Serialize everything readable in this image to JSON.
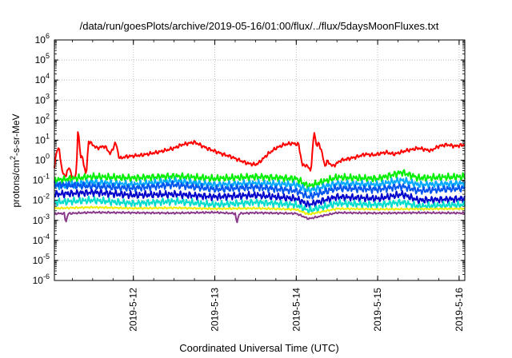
{
  "chart_data": {
    "type": "line",
    "title": "/data/run/goesPlots/archive/2019-05-16/01:00/flux/../flux/5daysMoonFluxes.txt",
    "xlabel": "Coordinated Universal Time (UTC)",
    "ylabel_parts": [
      "protons/cm",
      "2",
      "-s-sr-MeV"
    ],
    "y_scale": "log",
    "ylim": [
      1e-06,
      1000000.0
    ],
    "y_ticks": [
      {
        "mant": "10",
        "exp": "-6"
      },
      {
        "mant": "10",
        "exp": "-5"
      },
      {
        "mant": "10",
        "exp": "-4"
      },
      {
        "mant": "10",
        "exp": "-3"
      },
      {
        "mant": "10",
        "exp": "-2"
      },
      {
        "mant": "10",
        "exp": "-1"
      },
      {
        "mant": "10",
        "exp": "0"
      },
      {
        "mant": "10",
        "exp": "1"
      },
      {
        "mant": "10",
        "exp": "2"
      },
      {
        "mant": "10",
        "exp": "3"
      },
      {
        "mant": "10",
        "exp": "4"
      },
      {
        "mant": "10",
        "exp": "5"
      },
      {
        "mant": "10",
        "exp": "6"
      }
    ],
    "x_ticks": [
      "2019-5-12",
      "2019-5-13",
      "2019-5-14",
      "2019-5-15",
      "2019-5-16"
    ],
    "xlim_days": [
      11.03,
      16.07
    ],
    "grid": true,
    "series": [
      {
        "color": "#ff0000",
        "points": [
          [
            11.03,
            0.5
          ],
          [
            11.06,
            3
          ],
          [
            11.09,
            4
          ],
          [
            11.12,
            0.3
          ],
          [
            11.17,
            0.15
          ],
          [
            11.21,
            0.5
          ],
          [
            11.25,
            0.12
          ],
          [
            11.3,
            0.2
          ],
          [
            11.32,
            50
          ],
          [
            11.35,
            1.5
          ],
          [
            11.38,
            1.2
          ],
          [
            11.42,
            0.15
          ],
          [
            11.45,
            9
          ],
          [
            11.5,
            6
          ],
          [
            11.55,
            4
          ],
          [
            11.65,
            5
          ],
          [
            11.72,
            2
          ],
          [
            11.78,
            8
          ],
          [
            11.83,
            1.2
          ],
          [
            11.9,
            1.5
          ],
          [
            12.1,
            1.8
          ],
          [
            12.3,
            2.5
          ],
          [
            12.5,
            4
          ],
          [
            12.6,
            6
          ],
          [
            12.75,
            8
          ],
          [
            12.9,
            4
          ],
          [
            13.1,
            2
          ],
          [
            13.2,
            1.5
          ],
          [
            13.3,
            1
          ],
          [
            13.4,
            0.7
          ],
          [
            13.5,
            0.6
          ],
          [
            13.55,
            0.8
          ],
          [
            13.65,
            2
          ],
          [
            13.75,
            4
          ],
          [
            13.85,
            6
          ],
          [
            13.95,
            7
          ],
          [
            14.03,
            6
          ],
          [
            14.05,
            2
          ],
          [
            14.08,
            0.5
          ],
          [
            14.12,
            0.6
          ],
          [
            14.18,
            0.3
          ],
          [
            14.2,
            3
          ],
          [
            14.22,
            30
          ],
          [
            14.25,
            5
          ],
          [
            14.28,
            7
          ],
          [
            14.31,
            3
          ],
          [
            14.35,
            0.5
          ],
          [
            14.38,
            0.9
          ],
          [
            14.45,
            0.5
          ],
          [
            14.55,
            1
          ],
          [
            14.65,
            1.2
          ],
          [
            14.75,
            1.5
          ],
          [
            14.85,
            2
          ],
          [
            14.95,
            1.8
          ],
          [
            15.1,
            2.5
          ],
          [
            15.2,
            2
          ],
          [
            15.35,
            3
          ],
          [
            15.5,
            4
          ],
          [
            15.65,
            3
          ],
          [
            15.75,
            5
          ],
          [
            15.85,
            6
          ],
          [
            15.95,
            5
          ],
          [
            16.07,
            6
          ]
        ]
      },
      {
        "color": "#00ee00",
        "points": [
          [
            11.03,
            0.1
          ],
          [
            11.5,
            0.15
          ],
          [
            12.0,
            0.13
          ],
          [
            12.5,
            0.16
          ],
          [
            13.0,
            0.12
          ],
          [
            13.5,
            0.15
          ],
          [
            14.0,
            0.12
          ],
          [
            14.15,
            0.05
          ],
          [
            14.5,
            0.14
          ],
          [
            15.0,
            0.12
          ],
          [
            15.3,
            0.25
          ],
          [
            15.5,
            0.13
          ],
          [
            16.07,
            0.15
          ]
        ]
      },
      {
        "color": "#00aaff",
        "points": [
          [
            11.03,
            0.05
          ],
          [
            11.5,
            0.08
          ],
          [
            12.0,
            0.06
          ],
          [
            12.5,
            0.09
          ],
          [
            13.0,
            0.06
          ],
          [
            13.5,
            0.07
          ],
          [
            14.0,
            0.06
          ],
          [
            14.15,
            0.03
          ],
          [
            14.5,
            0.07
          ],
          [
            15.0,
            0.06
          ],
          [
            15.3,
            0.1
          ],
          [
            15.5,
            0.06
          ],
          [
            16.07,
            0.07
          ]
        ]
      },
      {
        "color": "#0055ee",
        "points": [
          [
            11.03,
            0.06
          ],
          [
            11.5,
            0.05
          ],
          [
            12.0,
            0.04
          ],
          [
            12.5,
            0.06
          ],
          [
            13.0,
            0.035
          ],
          [
            13.5,
            0.045
          ],
          [
            14.0,
            0.03
          ],
          [
            14.15,
            0.015
          ],
          [
            14.5,
            0.04
          ],
          [
            15.0,
            0.035
          ],
          [
            15.3,
            0.05
          ],
          [
            15.5,
            0.03
          ],
          [
            16.07,
            0.04
          ]
        ]
      },
      {
        "color": "#0000cc",
        "points": [
          [
            11.03,
            0.02
          ],
          [
            11.5,
            0.025
          ],
          [
            12.0,
            0.018
          ],
          [
            12.5,
            0.02
          ],
          [
            13.0,
            0.015
          ],
          [
            13.5,
            0.018
          ],
          [
            14.0,
            0.012
          ],
          [
            14.15,
            0.006
          ],
          [
            14.5,
            0.015
          ],
          [
            15.0,
            0.012
          ],
          [
            15.3,
            0.02
          ],
          [
            15.5,
            0.01
          ],
          [
            16.07,
            0.012
          ]
        ]
      },
      {
        "color": "#00ddcc",
        "points": [
          [
            11.03,
            0.008
          ],
          [
            11.5,
            0.01
          ],
          [
            12.0,
            0.007
          ],
          [
            12.5,
            0.009
          ],
          [
            13.0,
            0.006
          ],
          [
            13.5,
            0.008
          ],
          [
            14.0,
            0.006
          ],
          [
            14.15,
            0.003
          ],
          [
            14.5,
            0.007
          ],
          [
            15.0,
            0.006
          ],
          [
            15.3,
            0.008
          ],
          [
            15.5,
            0.005
          ],
          [
            16.07,
            0.006
          ]
        ]
      },
      {
        "color": "#eeee00",
        "points": [
          [
            11.03,
            0.004
          ],
          [
            11.5,
            0.0045
          ],
          [
            12.0,
            0.004
          ],
          [
            12.5,
            0.0042
          ],
          [
            13.0,
            0.0038
          ],
          [
            13.5,
            0.004
          ],
          [
            14.0,
            0.0035
          ],
          [
            14.15,
            0.002
          ],
          [
            14.5,
            0.0038
          ],
          [
            15.0,
            0.0036
          ],
          [
            15.5,
            0.0037
          ],
          [
            16.07,
            0.0038
          ]
        ]
      },
      {
        "color": "#8a3a8a",
        "points": [
          [
            11.03,
            0.0022
          ],
          [
            11.15,
            0.0022
          ],
          [
            11.17,
            0.0008
          ],
          [
            11.2,
            0.0022
          ],
          [
            11.5,
            0.0025
          ],
          [
            12.0,
            0.0024
          ],
          [
            12.5,
            0.0023
          ],
          [
            13.0,
            0.0025
          ],
          [
            13.25,
            0.0022
          ],
          [
            13.27,
            0.0007
          ],
          [
            13.3,
            0.0022
          ],
          [
            13.5,
            0.0024
          ],
          [
            14.0,
            0.0022
          ],
          [
            14.15,
            0.0012
          ],
          [
            14.5,
            0.0024
          ],
          [
            15.0,
            0.0023
          ],
          [
            15.5,
            0.0024
          ],
          [
            16.07,
            0.0023
          ]
        ]
      }
    ]
  }
}
